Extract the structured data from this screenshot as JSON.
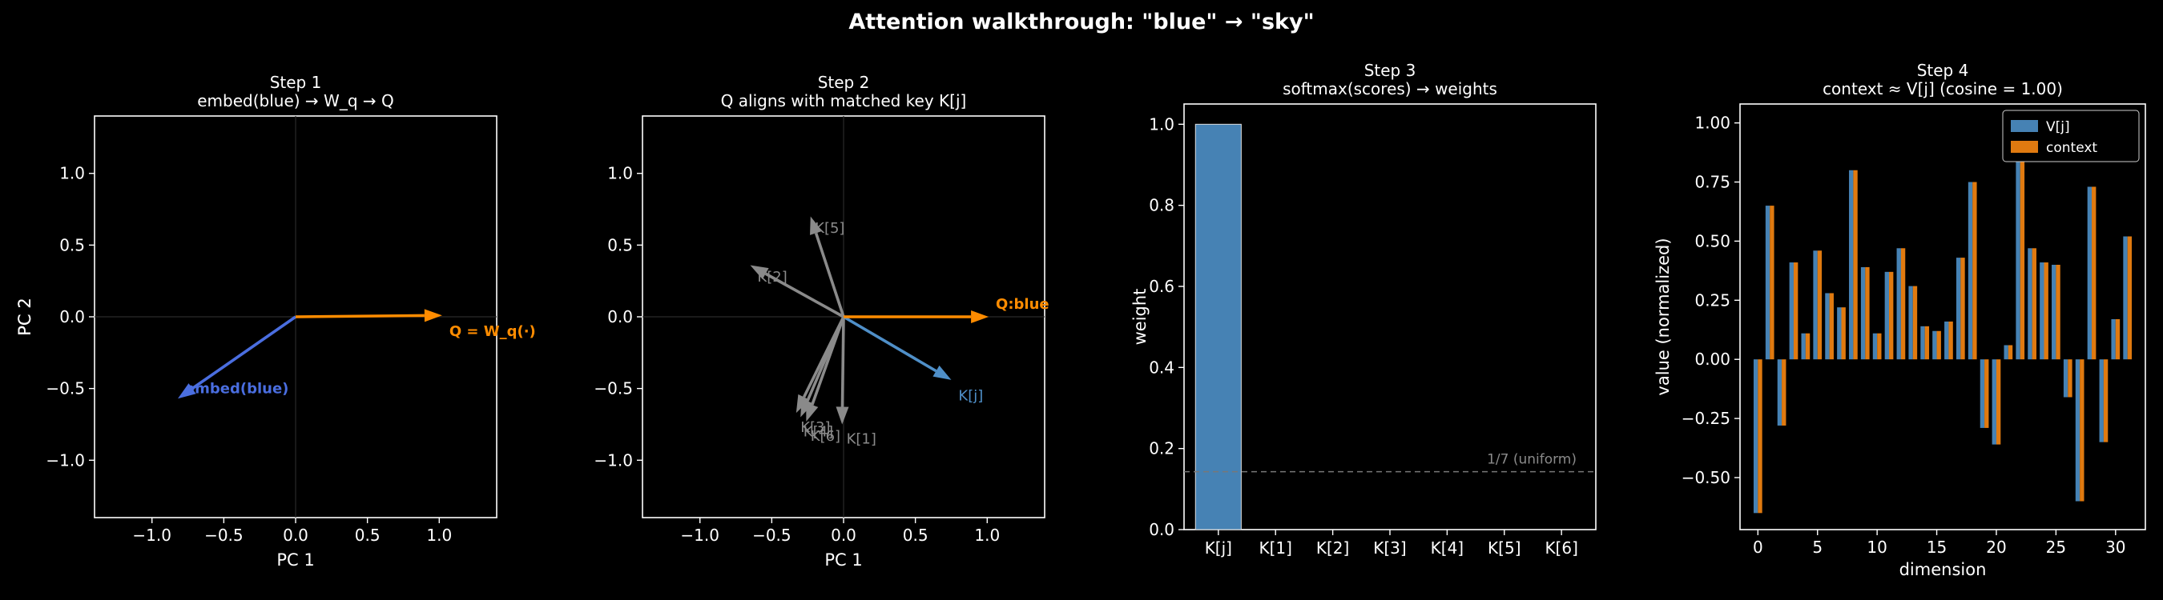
{
  "figure": {
    "title": "Attention walkthrough: \"blue\" → \"sky\""
  },
  "colors": {
    "background": "#000000",
    "foreground": "#ffffff",
    "embed": "#4a6ee0",
    "query": "#ff8c00",
    "key_match": "#4f8fc8",
    "key_other": "#8a8a8a",
    "bar": "#4682b4",
    "vj": "#4682b4",
    "context": "#e07a10",
    "uniform": "#777777"
  },
  "chart_data": [
    {
      "type": "scatter",
      "panel": "vectors",
      "title": "Step 1",
      "subtitle": "embed(blue) → W_q → Q",
      "xlabel": "PC 1",
      "ylabel": "PC 2",
      "xlim": [
        -1.4,
        1.4
      ],
      "ylim": [
        -1.4,
        1.4
      ],
      "xticks": [
        -1.0,
        -0.5,
        0.0,
        0.5,
        1.0
      ],
      "yticks": [
        -1.0,
        -0.5,
        0.0,
        0.5,
        1.0
      ],
      "tick_labels_x": [
        "−1.0",
        "−0.5",
        "0.0",
        "0.5",
        "1.0"
      ],
      "tick_labels_y": [
        "−1.0",
        "−0.5",
        "0.0",
        "0.5",
        "1.0"
      ],
      "vectors": [
        {
          "label": "embed(blue)",
          "x": -0.82,
          "y": -0.57,
          "color": "#4a6ee0",
          "bold": true,
          "label_x": -0.77,
          "label_y": -0.5
        },
        {
          "label": "Q = W_q(·)",
          "x": 1.02,
          "y": 0.01,
          "color": "#ff8c00",
          "bold": true,
          "label_x": 1.07,
          "label_y": -0.1
        }
      ]
    },
    {
      "type": "scatter",
      "panel": "vectors",
      "title": "Step 2",
      "subtitle": "Q aligns with matched key K[j]",
      "xlabel": "PC 1",
      "ylabel": "PC 2",
      "xlim": [
        -1.4,
        1.4
      ],
      "ylim": [
        -1.4,
        1.4
      ],
      "xticks": [
        -1.0,
        -0.5,
        0.0,
        0.5,
        1.0
      ],
      "yticks": [
        -1.0,
        -0.5,
        0.0,
        0.5,
        1.0
      ],
      "tick_labels_x": [
        "−1.0",
        "−0.5",
        "0.0",
        "0.5",
        "1.0"
      ],
      "tick_labels_y": [
        "−1.0",
        "−0.5",
        "0.0",
        "0.5",
        "1.0"
      ],
      "vectors": [
        {
          "label": "K[5]",
          "x": -0.23,
          "y": 0.7,
          "color": "#8a8a8a",
          "bold": false,
          "label_x": -0.2,
          "label_y": 0.62
        },
        {
          "label": "K[2]",
          "x": -0.65,
          "y": 0.36,
          "color": "#8a8a8a",
          "bold": false,
          "label_x": -0.6,
          "label_y": 0.28
        },
        {
          "label": "K[3]",
          "x": -0.33,
          "y": -0.67,
          "color": "#8a8a8a",
          "bold": false,
          "label_x": -0.3,
          "label_y": -0.77
        },
        {
          "label": "K[4]",
          "x": -0.3,
          "y": -0.7,
          "color": "#8a8a8a",
          "bold": false,
          "label_x": -0.28,
          "label_y": -0.8
        },
        {
          "label": "K[6]",
          "x": -0.26,
          "y": -0.73,
          "color": "#8a8a8a",
          "bold": false,
          "label_x": -0.23,
          "label_y": -0.83
        },
        {
          "label": "K[1]",
          "x": -0.01,
          "y": -0.75,
          "color": "#8a8a8a",
          "bold": false,
          "label_x": 0.02,
          "label_y": -0.85
        },
        {
          "label": "K[j]",
          "x": 0.75,
          "y": -0.44,
          "color": "#4f8fc8",
          "bold": false,
          "label_x": 0.8,
          "label_y": -0.55
        },
        {
          "label": "Q:blue",
          "x": 1.01,
          "y": 0.0,
          "color": "#ff8c00",
          "bold": true,
          "label_x": 1.06,
          "label_y": 0.09
        }
      ]
    },
    {
      "type": "bar",
      "title": "Step 3",
      "subtitle": "softmax(scores) → weights",
      "xlabel": "",
      "ylabel": "weight",
      "categories": [
        "K[j]",
        "K[1]",
        "K[2]",
        "K[3]",
        "K[4]",
        "K[5]",
        "K[6]"
      ],
      "values": [
        1.0,
        0.0,
        0.0,
        0.0,
        0.0,
        0.0,
        0.0
      ],
      "ylim": [
        0,
        1.05
      ],
      "yticks": [
        0.0,
        0.2,
        0.4,
        0.6,
        0.8,
        1.0
      ],
      "tick_labels_y": [
        "0.0",
        "0.2",
        "0.4",
        "0.6",
        "0.8",
        "1.0"
      ],
      "reference_line": {
        "y": 0.142857,
        "label": "1/7 (uniform)"
      }
    },
    {
      "type": "bar",
      "title": "Step 4",
      "subtitle": "context ≈ V[j]  (cosine = 1.00)",
      "xlabel": "dimension",
      "ylabel": "value (normalized)",
      "xticks": [
        0,
        5,
        10,
        15,
        20,
        25,
        30
      ],
      "tick_labels_x": [
        "0",
        "5",
        "10",
        "15",
        "20",
        "25",
        "30"
      ],
      "xlim": [
        -1.5,
        32.5
      ],
      "ylim": [
        -0.72,
        1.08
      ],
      "yticks": [
        -0.5,
        -0.25,
        0.0,
        0.25,
        0.5,
        0.75,
        1.0
      ],
      "tick_labels_y": [
        "−0.50",
        "−0.25",
        "0.00",
        "0.25",
        "0.50",
        "0.75",
        "1.00"
      ],
      "legend": {
        "placement": "top-right"
      },
      "series": [
        {
          "name": "V[j]",
          "color": "#4682b4",
          "values": [
            -0.65,
            0.65,
            -0.28,
            0.41,
            0.11,
            0.46,
            0.28,
            0.22,
            0.8,
            0.39,
            0.11,
            0.37,
            0.47,
            0.31,
            0.14,
            0.12,
            0.16,
            0.43,
            0.75,
            -0.29,
            -0.36,
            0.06,
            1.0,
            0.47,
            0.41,
            0.4,
            -0.16,
            -0.6,
            0.73,
            -0.35,
            0.17,
            0.52
          ]
        },
        {
          "name": "context",
          "color": "#e07a10",
          "values": [
            -0.65,
            0.65,
            -0.28,
            0.41,
            0.11,
            0.46,
            0.28,
            0.22,
            0.8,
            0.39,
            0.11,
            0.37,
            0.47,
            0.31,
            0.14,
            0.12,
            0.16,
            0.43,
            0.75,
            -0.29,
            -0.36,
            0.06,
            1.0,
            0.47,
            0.41,
            0.4,
            -0.16,
            -0.6,
            0.73,
            -0.35,
            0.17,
            0.52
          ]
        }
      ]
    }
  ]
}
